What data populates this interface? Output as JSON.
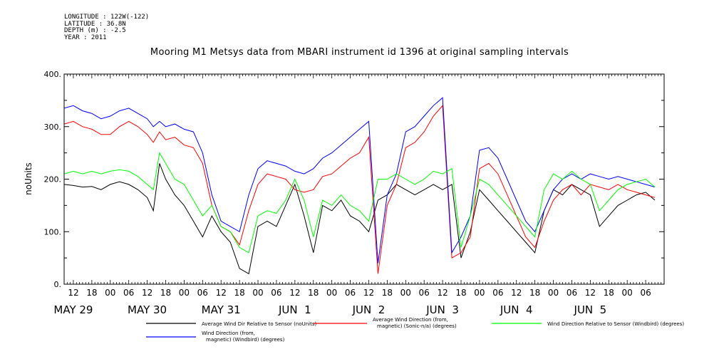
{
  "header": {
    "metadata": [
      "LONGITUDE : 122W(-122)",
      "LATITUDE : 36.8N",
      "DEPTH (m) : -2.5",
      "YEAR : 2011"
    ]
  },
  "chart_data": {
    "type": "line",
    "title": "Mooring M1 Metsys data from MBARI instrument id 1396 at original sampling intervals",
    "ylabel": "noUnits",
    "xlabel": "",
    "ylim": [
      0,
      400
    ],
    "yticks": [
      0,
      100,
      200,
      300,
      400
    ],
    "ytick_labels": [
      "0.",
      "100.",
      "200.",
      "300.",
      "400."
    ],
    "xlim_hours": [
      -15,
      180
    ],
    "hour_ticks": [
      {
        "label": "12",
        "hour": -12
      },
      {
        "label": "18",
        "hour": -6
      },
      {
        "label": "00",
        "hour": 0
      },
      {
        "label": "06",
        "hour": 6
      },
      {
        "label": "12",
        "hour": 12
      },
      {
        "label": "18",
        "hour": 18
      },
      {
        "label": "00",
        "hour": 24
      },
      {
        "label": "06",
        "hour": 30
      },
      {
        "label": "12",
        "hour": 36
      },
      {
        "label": "18",
        "hour": 42
      },
      {
        "label": "00",
        "hour": 48
      },
      {
        "label": "06",
        "hour": 54
      },
      {
        "label": "12",
        "hour": 60
      },
      {
        "label": "18",
        "hour": 66
      },
      {
        "label": "00",
        "hour": 72
      },
      {
        "label": "06",
        "hour": 78
      },
      {
        "label": "12",
        "hour": 84
      },
      {
        "label": "18",
        "hour": 90
      },
      {
        "label": "00",
        "hour": 96
      },
      {
        "label": "06",
        "hour": 102
      },
      {
        "label": "12",
        "hour": 108
      },
      {
        "label": "18",
        "hour": 114
      },
      {
        "label": "00",
        "hour": 120
      },
      {
        "label": "06",
        "hour": 126
      },
      {
        "label": "12",
        "hour": 132
      },
      {
        "label": "18",
        "hour": 138
      },
      {
        "label": "00",
        "hour": 144
      },
      {
        "label": "06",
        "hour": 150
      },
      {
        "label": "12",
        "hour": 156
      },
      {
        "label": "18",
        "hour": 162
      },
      {
        "label": "00",
        "hour": 168
      },
      {
        "label": "06",
        "hour": 174
      }
    ],
    "day_labels": [
      {
        "label": "MAY 29",
        "hour": -12
      },
      {
        "label": "MAY 30",
        "hour": 12
      },
      {
        "label": "MAY 31",
        "hour": 36
      },
      {
        "label": "JUN  1",
        "hour": 60
      },
      {
        "label": "JUN  2",
        "hour": 84
      },
      {
        "label": "JUN  3",
        "hour": 108
      },
      {
        "label": "JUN  4",
        "hour": 132
      },
      {
        "label": "JUN  5",
        "hour": 156
      }
    ],
    "x_units": "hours since 2011-05-29 00:00",
    "series": [
      {
        "name": "Average Wind Dir Relative to Sensor (noUnits)",
        "color": "#000000",
        "x": [
          -15,
          -12,
          -9,
          -6,
          -3,
          0,
          3,
          6,
          9,
          12,
          14,
          16,
          18,
          21,
          24,
          27,
          30,
          33,
          36,
          39,
          42,
          45,
          48,
          51,
          54,
          57,
          60,
          63,
          66,
          69,
          72,
          75,
          78,
          81,
          84,
          87,
          90,
          93,
          96,
          99,
          102,
          105,
          108,
          111,
          114,
          117,
          120,
          123,
          126,
          129,
          132,
          135,
          138,
          141,
          144,
          147,
          150,
          153,
          156,
          159,
          162,
          165,
          168,
          171,
          174,
          177
        ],
        "y": [
          190,
          188,
          185,
          186,
          180,
          190,
          195,
          190,
          180,
          165,
          140,
          230,
          200,
          170,
          150,
          120,
          90,
          130,
          100,
          80,
          30,
          20,
          110,
          120,
          110,
          150,
          190,
          130,
          60,
          150,
          140,
          160,
          130,
          120,
          100,
          160,
          170,
          190,
          180,
          170,
          180,
          190,
          180,
          190,
          50,
          100,
          180,
          160,
          140,
          120,
          100,
          80,
          60,
          140,
          180,
          170,
          190,
          180,
          170,
          110,
          130,
          150,
          160,
          170,
          175,
          160
        ]
      },
      {
        "name": "Average Wind Direction (from, magnetic) (Sonic-n/a) (degrees)",
        "color": "#ff0000",
        "x": [
          -15,
          -12,
          -9,
          -6,
          -3,
          0,
          3,
          6,
          9,
          12,
          14,
          16,
          18,
          21,
          24,
          27,
          30,
          33,
          36,
          39,
          42,
          45,
          48,
          51,
          54,
          57,
          60,
          63,
          66,
          69,
          72,
          75,
          78,
          81,
          84,
          87,
          90,
          93,
          96,
          99,
          102,
          105,
          108,
          111,
          114,
          117,
          120,
          123,
          126,
          129,
          132,
          135,
          138,
          141,
          144,
          147,
          150,
          153,
          156,
          159,
          162,
          165,
          168,
          171,
          174,
          177
        ],
        "y": [
          305,
          310,
          300,
          295,
          285,
          285,
          300,
          310,
          300,
          285,
          270,
          290,
          275,
          280,
          265,
          260,
          230,
          150,
          110,
          100,
          75,
          140,
          190,
          210,
          205,
          200,
          180,
          175,
          180,
          205,
          210,
          225,
          240,
          250,
          280,
          20,
          150,
          190,
          260,
          270,
          290,
          320,
          340,
          50,
          60,
          90,
          220,
          230,
          210,
          170,
          130,
          90,
          70,
          120,
          160,
          180,
          190,
          170,
          190,
          185,
          180,
          190,
          180,
          175,
          170,
          165
        ]
      },
      {
        "name": "Wind Direction (from, magnetic) (Windbird) (degrees)",
        "color": "#0000ff",
        "x": [
          -15,
          -12,
          -9,
          -6,
          -3,
          0,
          3,
          6,
          9,
          12,
          14,
          16,
          18,
          21,
          24,
          27,
          30,
          33,
          36,
          39,
          42,
          45,
          48,
          51,
          54,
          57,
          60,
          63,
          66,
          69,
          72,
          75,
          78,
          81,
          84,
          87,
          90,
          93,
          96,
          99,
          102,
          105,
          108,
          111,
          114,
          117,
          120,
          123,
          126,
          129,
          132,
          135,
          138,
          141,
          144,
          147,
          150,
          153,
          156,
          159,
          162,
          165,
          168,
          171,
          174,
          177
        ],
        "y": [
          335,
          340,
          330,
          325,
          315,
          320,
          330,
          335,
          325,
          315,
          300,
          310,
          300,
          305,
          295,
          290,
          250,
          170,
          120,
          110,
          100,
          170,
          220,
          235,
          230,
          225,
          215,
          210,
          220,
          240,
          250,
          265,
          280,
          295,
          310,
          40,
          170,
          210,
          290,
          300,
          320,
          340,
          355,
          60,
          90,
          130,
          255,
          260,
          240,
          200,
          160,
          120,
          100,
          140,
          180,
          200,
          210,
          200,
          210,
          205,
          200,
          205,
          200,
          195,
          190,
          185
        ]
      },
      {
        "name": "Wind Direction Relative to Sensor (Windbird) (degrees)",
        "color": "#00ff00",
        "x": [
          -15,
          -12,
          -9,
          -6,
          -3,
          0,
          3,
          6,
          9,
          12,
          14,
          16,
          18,
          21,
          24,
          27,
          30,
          33,
          36,
          39,
          42,
          45,
          48,
          51,
          54,
          57,
          60,
          63,
          66,
          69,
          72,
          75,
          78,
          81,
          84,
          87,
          90,
          93,
          96,
          99,
          102,
          105,
          108,
          111,
          114,
          117,
          120,
          123,
          126,
          129,
          132,
          135,
          138,
          141,
          144,
          147,
          150,
          153,
          156,
          159,
          162,
          165,
          168,
          171,
          174,
          177
        ],
        "y": [
          210,
          215,
          210,
          215,
          210,
          215,
          218,
          215,
          205,
          190,
          180,
          250,
          230,
          200,
          190,
          160,
          130,
          150,
          110,
          100,
          70,
          60,
          130,
          140,
          135,
          160,
          200,
          160,
          90,
          160,
          150,
          170,
          150,
          140,
          120,
          200,
          200,
          210,
          200,
          190,
          200,
          215,
          210,
          220,
          70,
          130,
          200,
          190,
          170,
          150,
          130,
          110,
          90,
          180,
          210,
          200,
          215,
          200,
          190,
          140,
          160,
          180,
          190,
          195,
          200,
          185
        ]
      }
    ],
    "legend_position": "bottom",
    "grid": false
  }
}
